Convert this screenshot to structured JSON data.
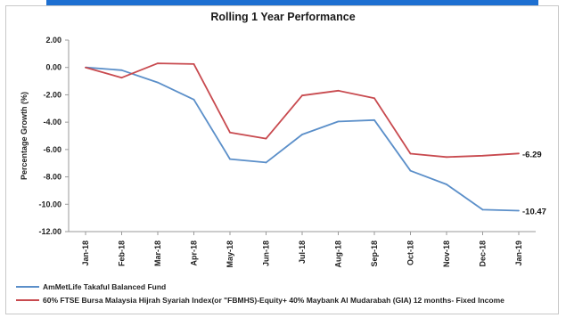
{
  "chart_data": {
    "type": "line",
    "title": "Rolling 1 Year Performance",
    "xlabel": "",
    "ylabel": "Percentage Growth (%)",
    "categories": [
      "Jan-18",
      "Feb-18",
      "Mar-18",
      "Apr-18",
      "May-18",
      "Jun-18",
      "Jul-18",
      "Aug-18",
      "Sep-18",
      "Oct-18",
      "Nov-18",
      "Dec-18",
      "Jan-19"
    ],
    "ylim": [
      -12,
      2
    ],
    "yticks": [
      "2.00",
      "0.00",
      "-2.00",
      "-4.00",
      "-6.00",
      "-8.00",
      "-10.00",
      "-12.00"
    ],
    "grid": false,
    "legend_position": "bottom",
    "series": [
      {
        "name": "AmMetLife Takaful Balanced Fund",
        "color": "#5b8fc9",
        "values": [
          0.0,
          -0.2,
          -1.1,
          -2.35,
          -6.7,
          -6.95,
          -4.9,
          -3.95,
          -3.85,
          -7.55,
          -8.55,
          -10.4,
          -10.47
        ],
        "end_label": "-10.47"
      },
      {
        "name": "60% FTSE Bursa Malaysia Hijrah Syariah Index(or \"FBMHS)-Equity+ 40% Maybank Al Mudarabah (GIA) 12 months- Fixed Income",
        "color": "#c84a4f",
        "values": [
          0.0,
          -0.75,
          0.3,
          0.25,
          -4.75,
          -5.2,
          -2.05,
          -1.7,
          -2.25,
          -6.3,
          -6.55,
          -6.45,
          -6.29
        ],
        "end_label": "-6.29"
      }
    ]
  }
}
